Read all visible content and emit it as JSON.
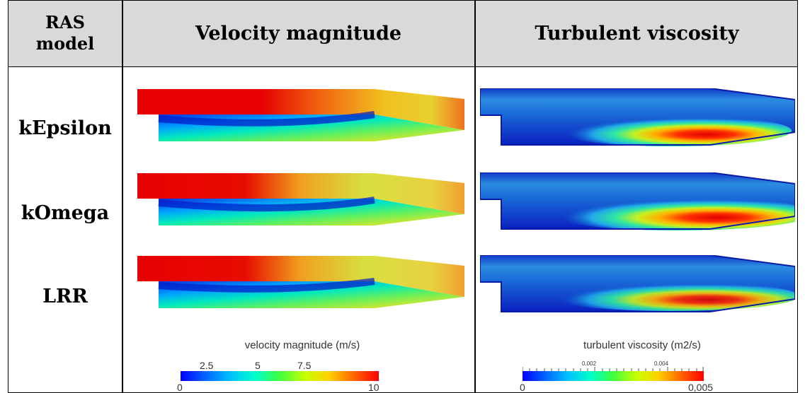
{
  "header": {
    "model_line1": "RAS",
    "model_line2": "model",
    "velocity": "Velocity magnitude",
    "turbulent": "Turbulent viscosity"
  },
  "rows": [
    {
      "label": "kEpsilon"
    },
    {
      "label": "kOmega"
    },
    {
      "label": "LRR"
    }
  ],
  "colorbars": {
    "velocity": {
      "title": "velocity magnitude (m/s)",
      "min_label": "0",
      "max_label": "10",
      "ticks": [
        "2.5",
        "5",
        "7.5"
      ]
    },
    "turbulent": {
      "title": "turbulent viscosity (m2/s)",
      "min_label": "0",
      "max_label": "0,005",
      "ticks": [
        "0.002",
        "0.004"
      ]
    }
  },
  "colors": {
    "header_bg": "#d9d9d9",
    "jet_low": "#0000ff",
    "jet_high": "#ff0000"
  }
}
